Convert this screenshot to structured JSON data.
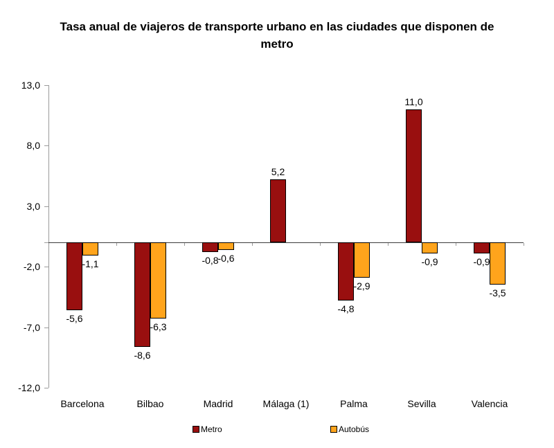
{
  "chart_data": {
    "type": "bar",
    "title": "Tasa anual de viajeros de transporte urbano en las ciudades que disponen de metro",
    "categories": [
      "Barcelona",
      "Bilbao",
      "Madrid",
      "Málaga (1)",
      "Palma",
      "Sevilla",
      "Valencia"
    ],
    "series": [
      {
        "name": "Metro",
        "color": "#990F0F",
        "values": [
          -5.6,
          -8.6,
          -0.8,
          5.2,
          -4.8,
          11.0,
          -0.9
        ],
        "value_labels": [
          "-5,6",
          "-8,6",
          "-0,8",
          "5,2",
          "-4,8",
          "11,0",
          "-0,9"
        ]
      },
      {
        "name": "Autobús",
        "color": "#FFA41C",
        "values": [
          -1.1,
          -6.3,
          -0.6,
          null,
          -2.9,
          -0.9,
          -3.5
        ],
        "value_labels": [
          "-1,1",
          "-6,3",
          "-0,6",
          null,
          "-2,9",
          "-0,9",
          "-3,5"
        ]
      }
    ],
    "ylim": [
      -12,
      13
    ],
    "yticks": [
      13,
      8,
      3,
      -2,
      -7,
      -12
    ],
    "ytick_labels": [
      "13,0",
      "8,0",
      "3,0",
      "-2,0",
      "-7,0",
      "-12,0"
    ],
    "grid": false,
    "legend_position": "bottom",
    "axis_color": "#9a9a9a",
    "bar_border_color": "#000000"
  }
}
